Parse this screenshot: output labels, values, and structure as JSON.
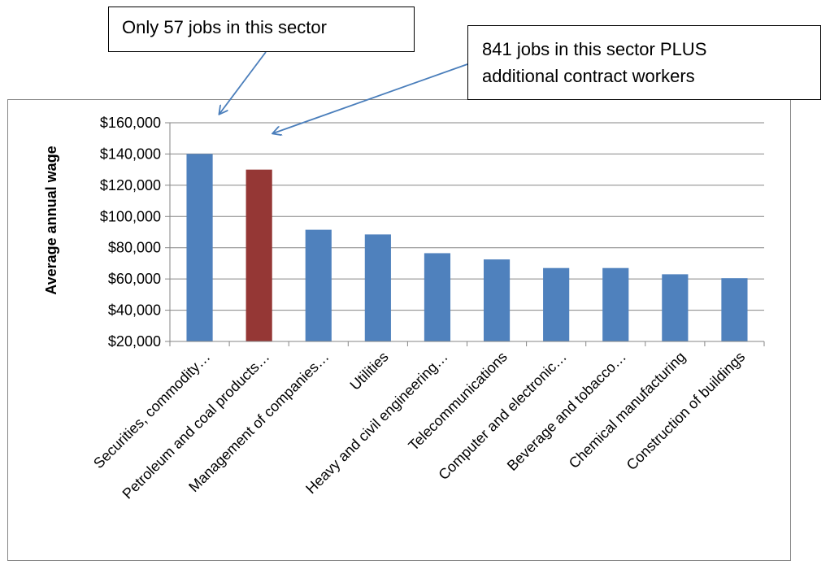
{
  "annotations": [
    {
      "text": "Only 57 jobs in this sector",
      "target": 0
    },
    {
      "text": "841 jobs in this sector PLUS additional contract workers",
      "line1": "841 jobs in this sector PLUS",
      "line2": "additional contract workers",
      "target": 1
    }
  ],
  "colors": {
    "bar": "#4F81BD",
    "highlight": "#953735",
    "arrow": "#4A7EBB",
    "grid": "#868686"
  },
  "chart_data": {
    "type": "bar",
    "title": "",
    "xlabel": "",
    "ylabel": "Average annual wage",
    "ylim": [
      20000,
      160000
    ],
    "yticks": [
      20000,
      40000,
      60000,
      80000,
      100000,
      120000,
      140000,
      160000
    ],
    "ytick_labels": [
      "$20,000",
      "$40,000",
      "$60,000",
      "$80,000",
      "$100,000",
      "$120,000",
      "$140,000",
      "$160,000"
    ],
    "grid": true,
    "categories": [
      "Securities, commodity…",
      "Petroleum and coal products…",
      "Management of companies…",
      "Utilities",
      "Heavy and civil engineering…",
      "Telecommunications",
      "Computer and electronic…",
      "Beverage and tobacco…",
      "Chemical manufacturing",
      "Construction of buildings"
    ],
    "values": [
      140000,
      130000,
      91500,
      88500,
      76500,
      72500,
      67000,
      67000,
      63000,
      60500
    ],
    "highlight_index": 1
  }
}
